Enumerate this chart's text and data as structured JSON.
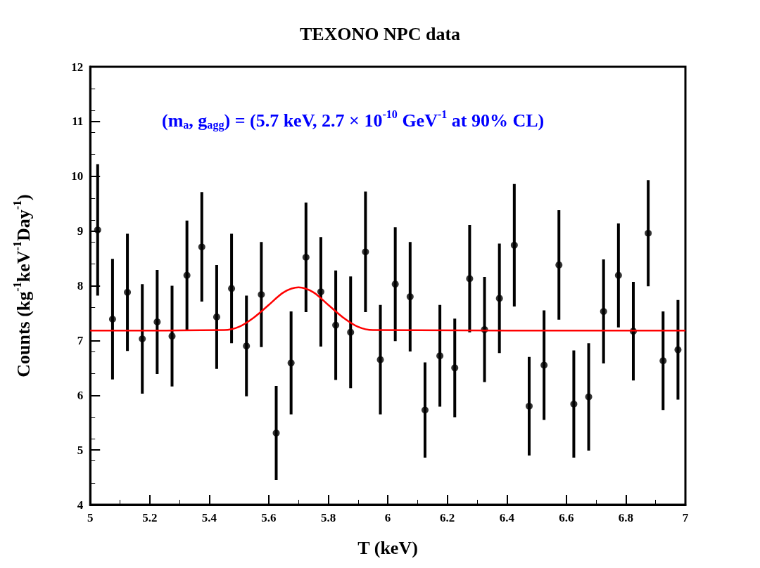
{
  "chart_data": {
    "type": "scatter",
    "title": "TEXONO NPC data",
    "xlabel": "T (keV)",
    "ylabel": "Counts (kg$^{-1}$keV$^{-1}$Day$^{-1}$)",
    "annotations": [
      "(m$_{a}$, g$_{agg}$) = (5.7 keV, 2.7 × 10$^{-10}$ GeV$^{-1}$ at 90% CL)"
    ],
    "xlim": [
      5,
      7
    ],
    "xticks": [
      5,
      5.2,
      5.4,
      5.6,
      5.8,
      6,
      6.2,
      6.4,
      6.6,
      6.8,
      7
    ],
    "ylim": [
      4,
      12
    ],
    "yticks": [
      4,
      5,
      6,
      7,
      8,
      9,
      10,
      11,
      12
    ],
    "grid": false,
    "marker": "circle",
    "series": [
      {
        "color": "#000000",
        "x": [
          5.025,
          5.075,
          5.125,
          5.175,
          5.225,
          5.275,
          5.325,
          5.375,
          5.425,
          5.475,
          5.525,
          5.575,
          5.625,
          5.675,
          5.725,
          5.775,
          5.825,
          5.875,
          5.925,
          5.975,
          6.025,
          6.075,
          6.125,
          6.175,
          6.225,
          6.275,
          6.325,
          6.375,
          6.425,
          6.475,
          6.525,
          6.575,
          6.625,
          6.675,
          6.725,
          6.775,
          6.825,
          6.875,
          6.925,
          6.975
        ],
        "values": [
          9.02,
          7.39,
          7.88,
          7.03,
          7.34,
          7.08,
          8.19,
          8.71,
          7.43,
          7.95,
          6.9,
          7.84,
          5.31,
          6.59,
          8.52,
          7.89,
          7.28,
          7.15,
          8.62,
          6.65,
          8.03,
          7.8,
          5.73,
          6.72,
          6.5,
          8.13,
          7.2,
          7.77,
          8.74,
          5.8,
          6.55,
          8.38,
          5.84,
          5.97,
          7.53,
          8.19,
          7.17,
          8.96,
          6.63,
          6.83
        ],
        "errors": [
          1.2,
          1.1,
          1.07,
          1.0,
          0.95,
          0.92,
          1.0,
          1.0,
          0.95,
          1.0,
          0.92,
          0.96,
          0.86,
          0.94,
          1.0,
          1.0,
          1.0,
          1.02,
          1.1,
          1.0,
          1.04,
          1.0,
          0.87,
          0.93,
          0.9,
          0.98,
          0.96,
          1.0,
          1.12,
          0.9,
          1.0,
          1.0,
          0.98,
          0.98,
          0.95,
          0.95,
          0.9,
          0.97,
          0.9,
          0.91
        ]
      },
      {
        "type": "line",
        "color": "#ff0000",
        "line_style": "solid",
        "marker": "none",
        "x": [
          5,
          5.45,
          5.5,
          5.55,
          5.6,
          5.65,
          5.7,
          5.75,
          5.8,
          5.85,
          5.9,
          5.95,
          7
        ],
        "values": [
          7.18,
          7.19,
          7.25,
          7.42,
          7.65,
          7.88,
          7.97,
          7.88,
          7.65,
          7.42,
          7.25,
          7.19,
          7.18
        ]
      }
    ]
  }
}
